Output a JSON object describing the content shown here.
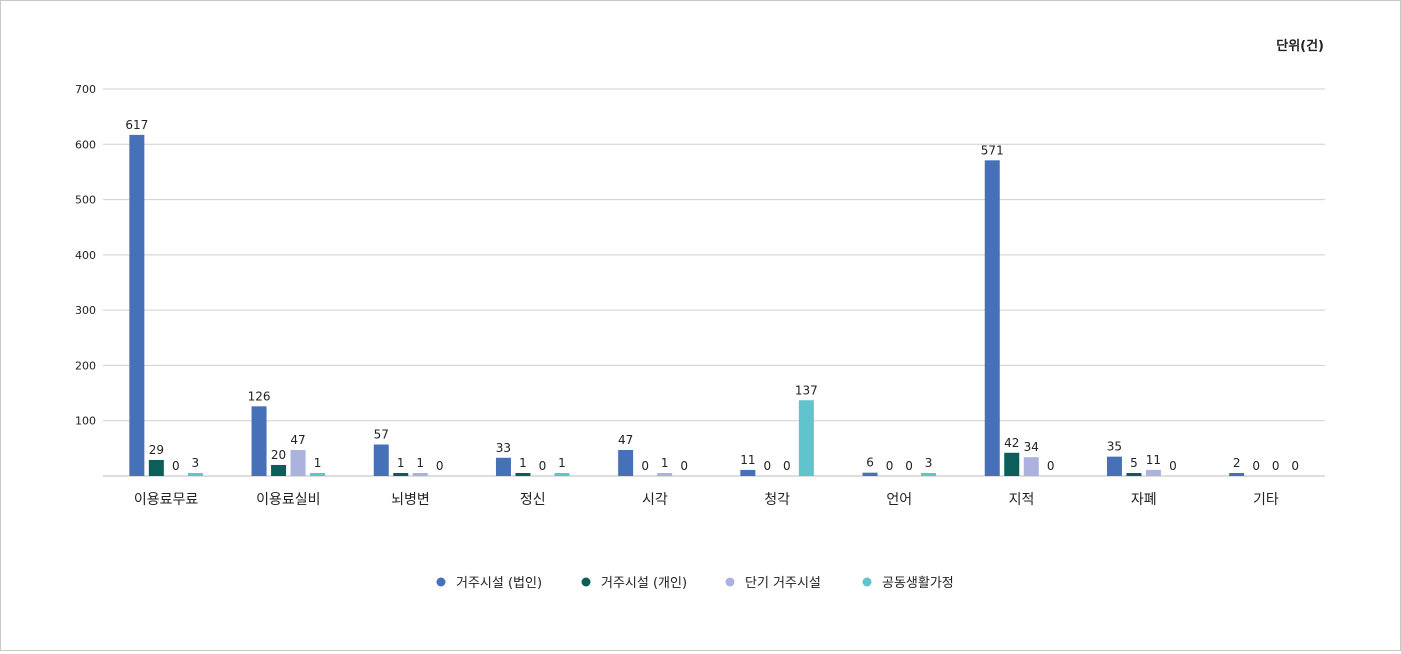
{
  "unit_label": "단위(건)",
  "chart_data": {
    "type": "bar",
    "categories": [
      "이용료무료",
      "이용료실비",
      "뇌병변",
      "정신",
      "시각",
      "청각",
      "언어",
      "지적",
      "자폐",
      "기타"
    ],
    "series": [
      {
        "name": "거주시설 (법인)",
        "color": "#4670b8",
        "values": [
          617,
          126,
          57,
          33,
          47,
          11,
          6,
          571,
          35,
          2
        ]
      },
      {
        "name": "거주시설 (개인)",
        "color": "#0b5e5a",
        "values": [
          29,
          20,
          1,
          1,
          0,
          0,
          0,
          42,
          5,
          0
        ]
      },
      {
        "name": "단기 거주시설",
        "color": "#abb2de",
        "values": [
          0,
          47,
          1,
          0,
          1,
          0,
          0,
          34,
          11,
          0
        ]
      },
      {
        "name": "공동생활가정",
        "color": "#5fc4cb",
        "values": [
          3,
          1,
          0,
          1,
          0,
          137,
          3,
          0,
          0,
          0
        ]
      }
    ],
    "ylim": [
      0,
      700
    ],
    "yticks": [
      100,
      200,
      300,
      400,
      500,
      600,
      700
    ],
    "grid": true,
    "legend_position": "bottom-center"
  }
}
